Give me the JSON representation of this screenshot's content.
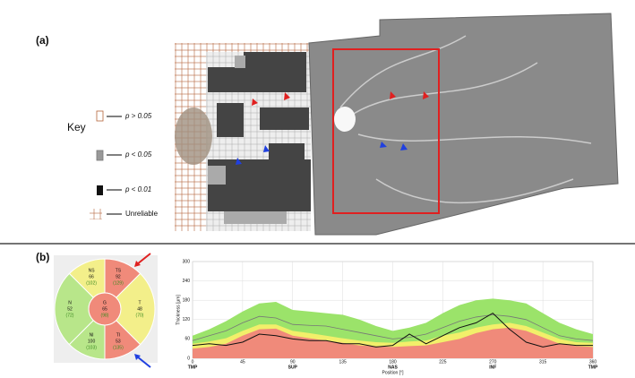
{
  "panel_a": {
    "label": "(a)",
    "key": {
      "title": "Key",
      "items": [
        "p > 0.05",
        "p < 0.05",
        "p < 0.01",
        "Unreliable"
      ]
    }
  },
  "panel_b": {
    "label": "(b)",
    "sectors": [
      {
        "name": "NS",
        "value": 66,
        "normal": "(102)"
      },
      {
        "name": "TS",
        "value": 92,
        "normal": "(129)"
      },
      {
        "name": "N",
        "value": 52,
        "normal": "(72)"
      },
      {
        "name": "G",
        "value": 65,
        "normal": "(98)"
      },
      {
        "name": "T",
        "value": 48,
        "normal": "(70)"
      },
      {
        "name": "NI",
        "value": 100,
        "normal": "(103)"
      },
      {
        "name": "TI",
        "value": 53,
        "normal": "(135)"
      }
    ],
    "chart_data": {
      "type": "line",
      "xlabel": "Position [°]",
      "ylabel": "Thickness [µm]",
      "x": [
        0,
        15,
        30,
        45,
        60,
        75,
        90,
        105,
        120,
        135,
        150,
        165,
        180,
        195,
        210,
        225,
        240,
        255,
        270,
        285,
        300,
        315,
        330,
        345,
        360
      ],
      "series": [
        {
          "color": "#9be36a",
          "values": [
            70,
            90,
            115,
            145,
            170,
            175,
            150,
            145,
            140,
            135,
            120,
            100,
            85,
            95,
            110,
            140,
            165,
            180,
            185,
            180,
            170,
            140,
            110,
            90,
            75
          ]
        },
        {
          "color": "#f2ef6a",
          "values": [
            45,
            52,
            62,
            85,
            105,
            105,
            85,
            78,
            70,
            62,
            55,
            50,
            48,
            52,
            55,
            70,
            80,
            95,
            105,
            110,
            100,
            80,
            60,
            50,
            48
          ]
        },
        {
          "color": "#f08a7a",
          "values": [
            30,
            35,
            45,
            70,
            90,
            92,
            70,
            62,
            55,
            48,
            40,
            37,
            35,
            38,
            40,
            50,
            60,
            78,
            90,
            95,
            85,
            65,
            45,
            38,
            35
          ]
        },
        {
          "color": "#777777",
          "values": [
            55,
            70,
            85,
            110,
            130,
            125,
            105,
            102,
            100,
            90,
            80,
            70,
            60,
            65,
            75,
            95,
            115,
            128,
            135,
            130,
            120,
            95,
            70,
            60,
            55
          ]
        },
        {
          "color": "#111111",
          "values": [
            40,
            45,
            40,
            50,
            75,
            70,
            60,
            55,
            55,
            45,
            45,
            35,
            40,
            75,
            45,
            70,
            95,
            110,
            140,
            90,
            50,
            35,
            45,
            40,
            40
          ]
        }
      ],
      "xlim": [
        0,
        360
      ],
      "ylim": [
        0,
        300
      ],
      "xticks": [
        0,
        45,
        90,
        135,
        180,
        225,
        270,
        315,
        360
      ],
      "yticks": [
        0,
        60,
        120,
        180,
        240,
        300
      ],
      "regions": [
        {
          "x": 0,
          "label": "TMP"
        },
        {
          "x": 90,
          "label": "SUP"
        },
        {
          "x": 180,
          "label": "NAS"
        },
        {
          "x": 270,
          "label": "INF"
        },
        {
          "x": 360,
          "label": "TMP"
        }
      ],
      "grid": true
    }
  }
}
